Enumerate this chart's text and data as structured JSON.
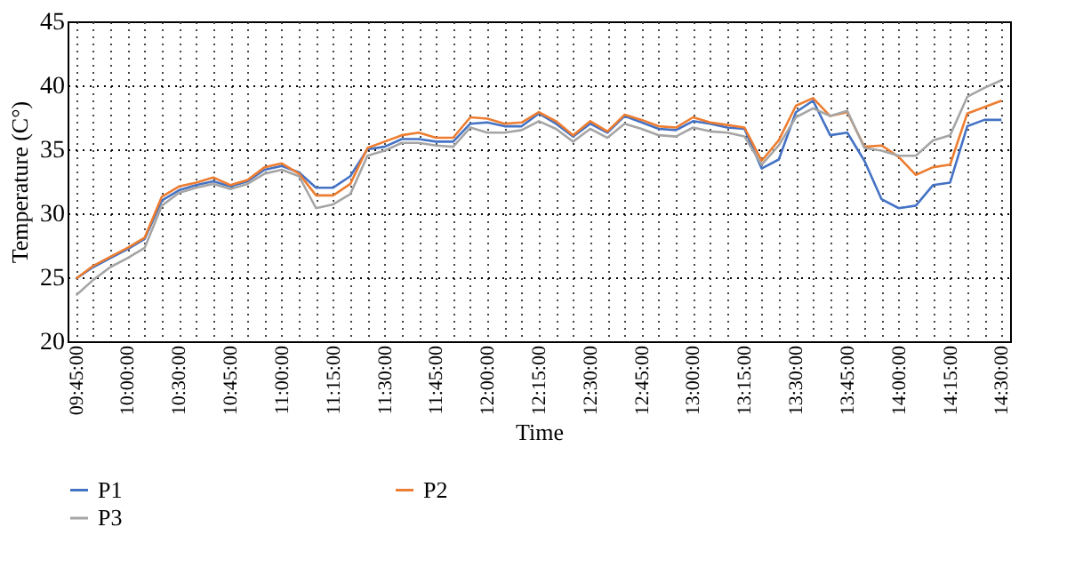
{
  "chart_data": {
    "type": "line",
    "xlabel": "Time",
    "ylabel": "Temperature (C°)",
    "categories": [
      "09:45:00",
      null,
      null,
      "10:00:00",
      null,
      null,
      "10:30:00",
      null,
      null,
      "10:45:00",
      null,
      null,
      "11:00:00",
      null,
      null,
      "11:15:00",
      null,
      null,
      "11:30:00",
      null,
      null,
      "11:45:00",
      null,
      null,
      "12:00:00",
      null,
      null,
      "12:15:00",
      null,
      null,
      "12:30:00",
      null,
      null,
      "12:45:00",
      null,
      null,
      "13:00:00",
      null,
      null,
      "13:15:00",
      null,
      null,
      "13:30:00",
      null,
      null,
      "13:45:00",
      null,
      null,
      "14:00:00",
      null,
      null,
      "14:15:00",
      null,
      null,
      "14:30:00"
    ],
    "series": [
      {
        "name": "P1",
        "color": "#4472c4",
        "values": [
          24.9,
          25.8,
          26.5,
          27.2,
          28.0,
          31.0,
          31.8,
          32.2,
          32.5,
          32.1,
          32.5,
          33.4,
          33.7,
          33.2,
          32.0,
          32.0,
          32.9,
          35.0,
          35.2,
          35.8,
          35.8,
          35.6,
          35.6,
          37.0,
          37.1,
          36.8,
          36.8,
          37.8,
          37.0,
          36.0,
          37.0,
          36.3,
          37.6,
          37.1,
          36.6,
          36.5,
          37.2,
          37.0,
          36.7,
          36.6,
          33.5,
          34.2,
          37.9,
          38.8,
          36.1,
          36.3,
          34.1,
          31.1,
          30.4,
          30.6,
          32.2,
          32.4,
          36.8,
          37.3,
          37.3
        ]
      },
      {
        "name": "P2",
        "color": "#ed7d31",
        "values": [
          24.9,
          25.9,
          26.6,
          27.3,
          28.1,
          31.3,
          32.1,
          32.4,
          32.8,
          32.2,
          32.6,
          33.6,
          33.9,
          33.1,
          31.4,
          31.4,
          32.3,
          35.1,
          35.6,
          36.1,
          36.3,
          35.9,
          35.9,
          37.5,
          37.4,
          37.0,
          37.1,
          37.9,
          37.2,
          36.1,
          37.2,
          36.4,
          37.7,
          37.3,
          36.8,
          36.7,
          37.5,
          37.1,
          36.9,
          36.7,
          34.1,
          35.7,
          38.4,
          39.0,
          37.6,
          37.9,
          35.2,
          35.3,
          34.4,
          33.0,
          33.6,
          33.8,
          37.8,
          38.3,
          38.8
        ]
      },
      {
        "name": "P3",
        "color": "#a5a5a5",
        "values": [
          23.6,
          24.8,
          25.8,
          26.5,
          27.3,
          30.6,
          31.6,
          32.0,
          32.3,
          31.9,
          32.3,
          33.1,
          33.4,
          32.9,
          30.4,
          30.7,
          31.5,
          34.5,
          34.9,
          35.5,
          35.5,
          35.3,
          35.2,
          36.7,
          36.3,
          36.3,
          36.5,
          37.2,
          36.6,
          35.6,
          36.6,
          35.9,
          37.0,
          36.6,
          36.1,
          36.0,
          36.7,
          36.4,
          36.3,
          36.0,
          33.8,
          35.3,
          37.5,
          38.2,
          37.6,
          38.0,
          35.1,
          34.9,
          34.5,
          34.5,
          35.7,
          36.1,
          39.1,
          39.8,
          40.4
        ]
      }
    ],
    "ylim": [
      20,
      45
    ],
    "yticks": [
      20,
      25,
      30,
      35,
      40,
      45
    ],
    "grid": true,
    "legend": "bottom",
    "marker": "none",
    "line_style": "solid"
  }
}
